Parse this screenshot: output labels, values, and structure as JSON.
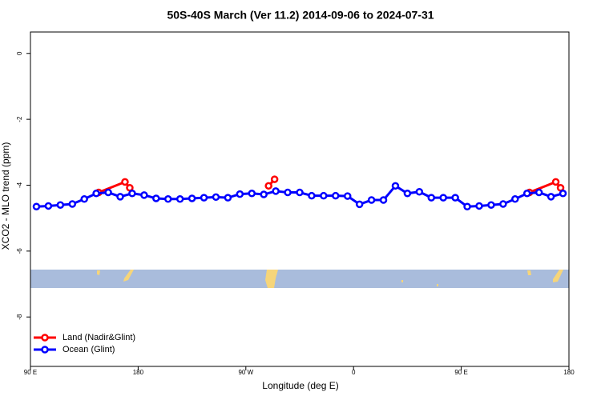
{
  "chart_data": {
    "type": "line",
    "title": "50S-40S March (Ver 11.2)   2014-09-06 to 2024-07-31",
    "x_label": "Longitude (deg E)",
    "y_label": "XCO2 - MLO trend (ppm)",
    "xlim": [
      90,
      540
    ],
    "ylim": [
      -9.5,
      0.65
    ],
    "xticks": [
      {
        "value": 90,
        "label": "90 E"
      },
      180,
      {
        "value": 270,
        "label": "90 W"
      },
      {
        "value": 360,
        "label": "0"
      },
      {
        "value": 450,
        "label": "90 E"
      },
      {
        "value": 540,
        "label": "180"
      }
    ],
    "yticks": [
      0,
      -2,
      -4,
      -6,
      -8
    ],
    "legend": "bottom-left",
    "series": [
      {
        "name": "Land (Nadir&Glint)",
        "color": "#ff0000",
        "x": [
          147,
          169,
          173,
          289,
          294,
          507,
          529,
          533
        ],
        "values": [
          -4.22,
          -3.9,
          -4.08,
          -4.02,
          -3.82,
          -4.22,
          -3.9,
          -4.08
        ]
      },
      {
        "name": "Ocean (Glint)",
        "color": "#0000ff",
        "x": [
          95,
          105,
          115,
          125,
          135,
          145,
          155,
          165,
          175,
          185,
          195,
          205,
          215,
          225,
          235,
          245,
          255,
          265,
          275,
          285,
          295,
          305,
          315,
          325,
          335,
          345,
          355,
          365,
          375,
          385,
          395,
          405,
          415,
          425,
          435,
          445,
          455,
          465,
          475,
          485,
          495,
          505,
          515,
          525,
          535
        ],
        "values": [
          -4.65,
          -4.63,
          -4.6,
          -4.57,
          -4.42,
          -4.25,
          -4.22,
          -4.35,
          -4.25,
          -4.3,
          -4.4,
          -4.42,
          -4.42,
          -4.4,
          -4.38,
          -4.36,
          -4.38,
          -4.27,
          -4.25,
          -4.28,
          -4.18,
          -4.22,
          -4.22,
          -4.32,
          -4.32,
          -4.32,
          -4.33,
          -4.58,
          -4.45,
          -4.45,
          -4.02,
          -4.25,
          -4.2,
          -4.38,
          -4.38,
          -4.38,
          -4.65,
          -4.63,
          -4.6,
          -4.57,
          -4.42,
          -4.25,
          -4.22,
          -4.35,
          -4.25
        ]
      }
    ]
  }
}
